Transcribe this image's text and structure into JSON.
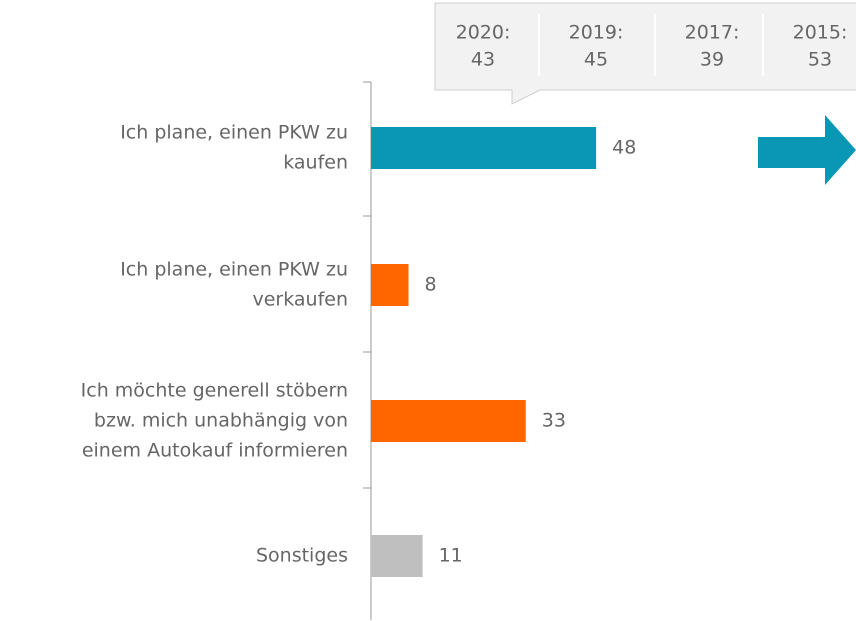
{
  "chart_data": {
    "type": "bar",
    "orientation": "horizontal",
    "categories": [
      [
        "Ich plane, einen PKW zu",
        "kaufen"
      ],
      [
        "Ich plane, einen PKW zu",
        "verkaufen"
      ],
      [
        "Ich möchte generell stöbern",
        "bzw. mich unabhängig von",
        "einem Autokauf informieren"
      ],
      [
        "Sonstiges"
      ]
    ],
    "values": [
      48,
      8,
      33,
      11
    ],
    "colors": [
      "#0997b5",
      "#ff6600",
      "#ff6600",
      "#bfbfbf"
    ],
    "callout": [
      {
        "label": "2020:",
        "value": 43
      },
      {
        "label": "2019:",
        "value": 45
      },
      {
        "label": "2017:",
        "value": 39
      },
      {
        "label": "2015:",
        "value": 53
      }
    ]
  }
}
